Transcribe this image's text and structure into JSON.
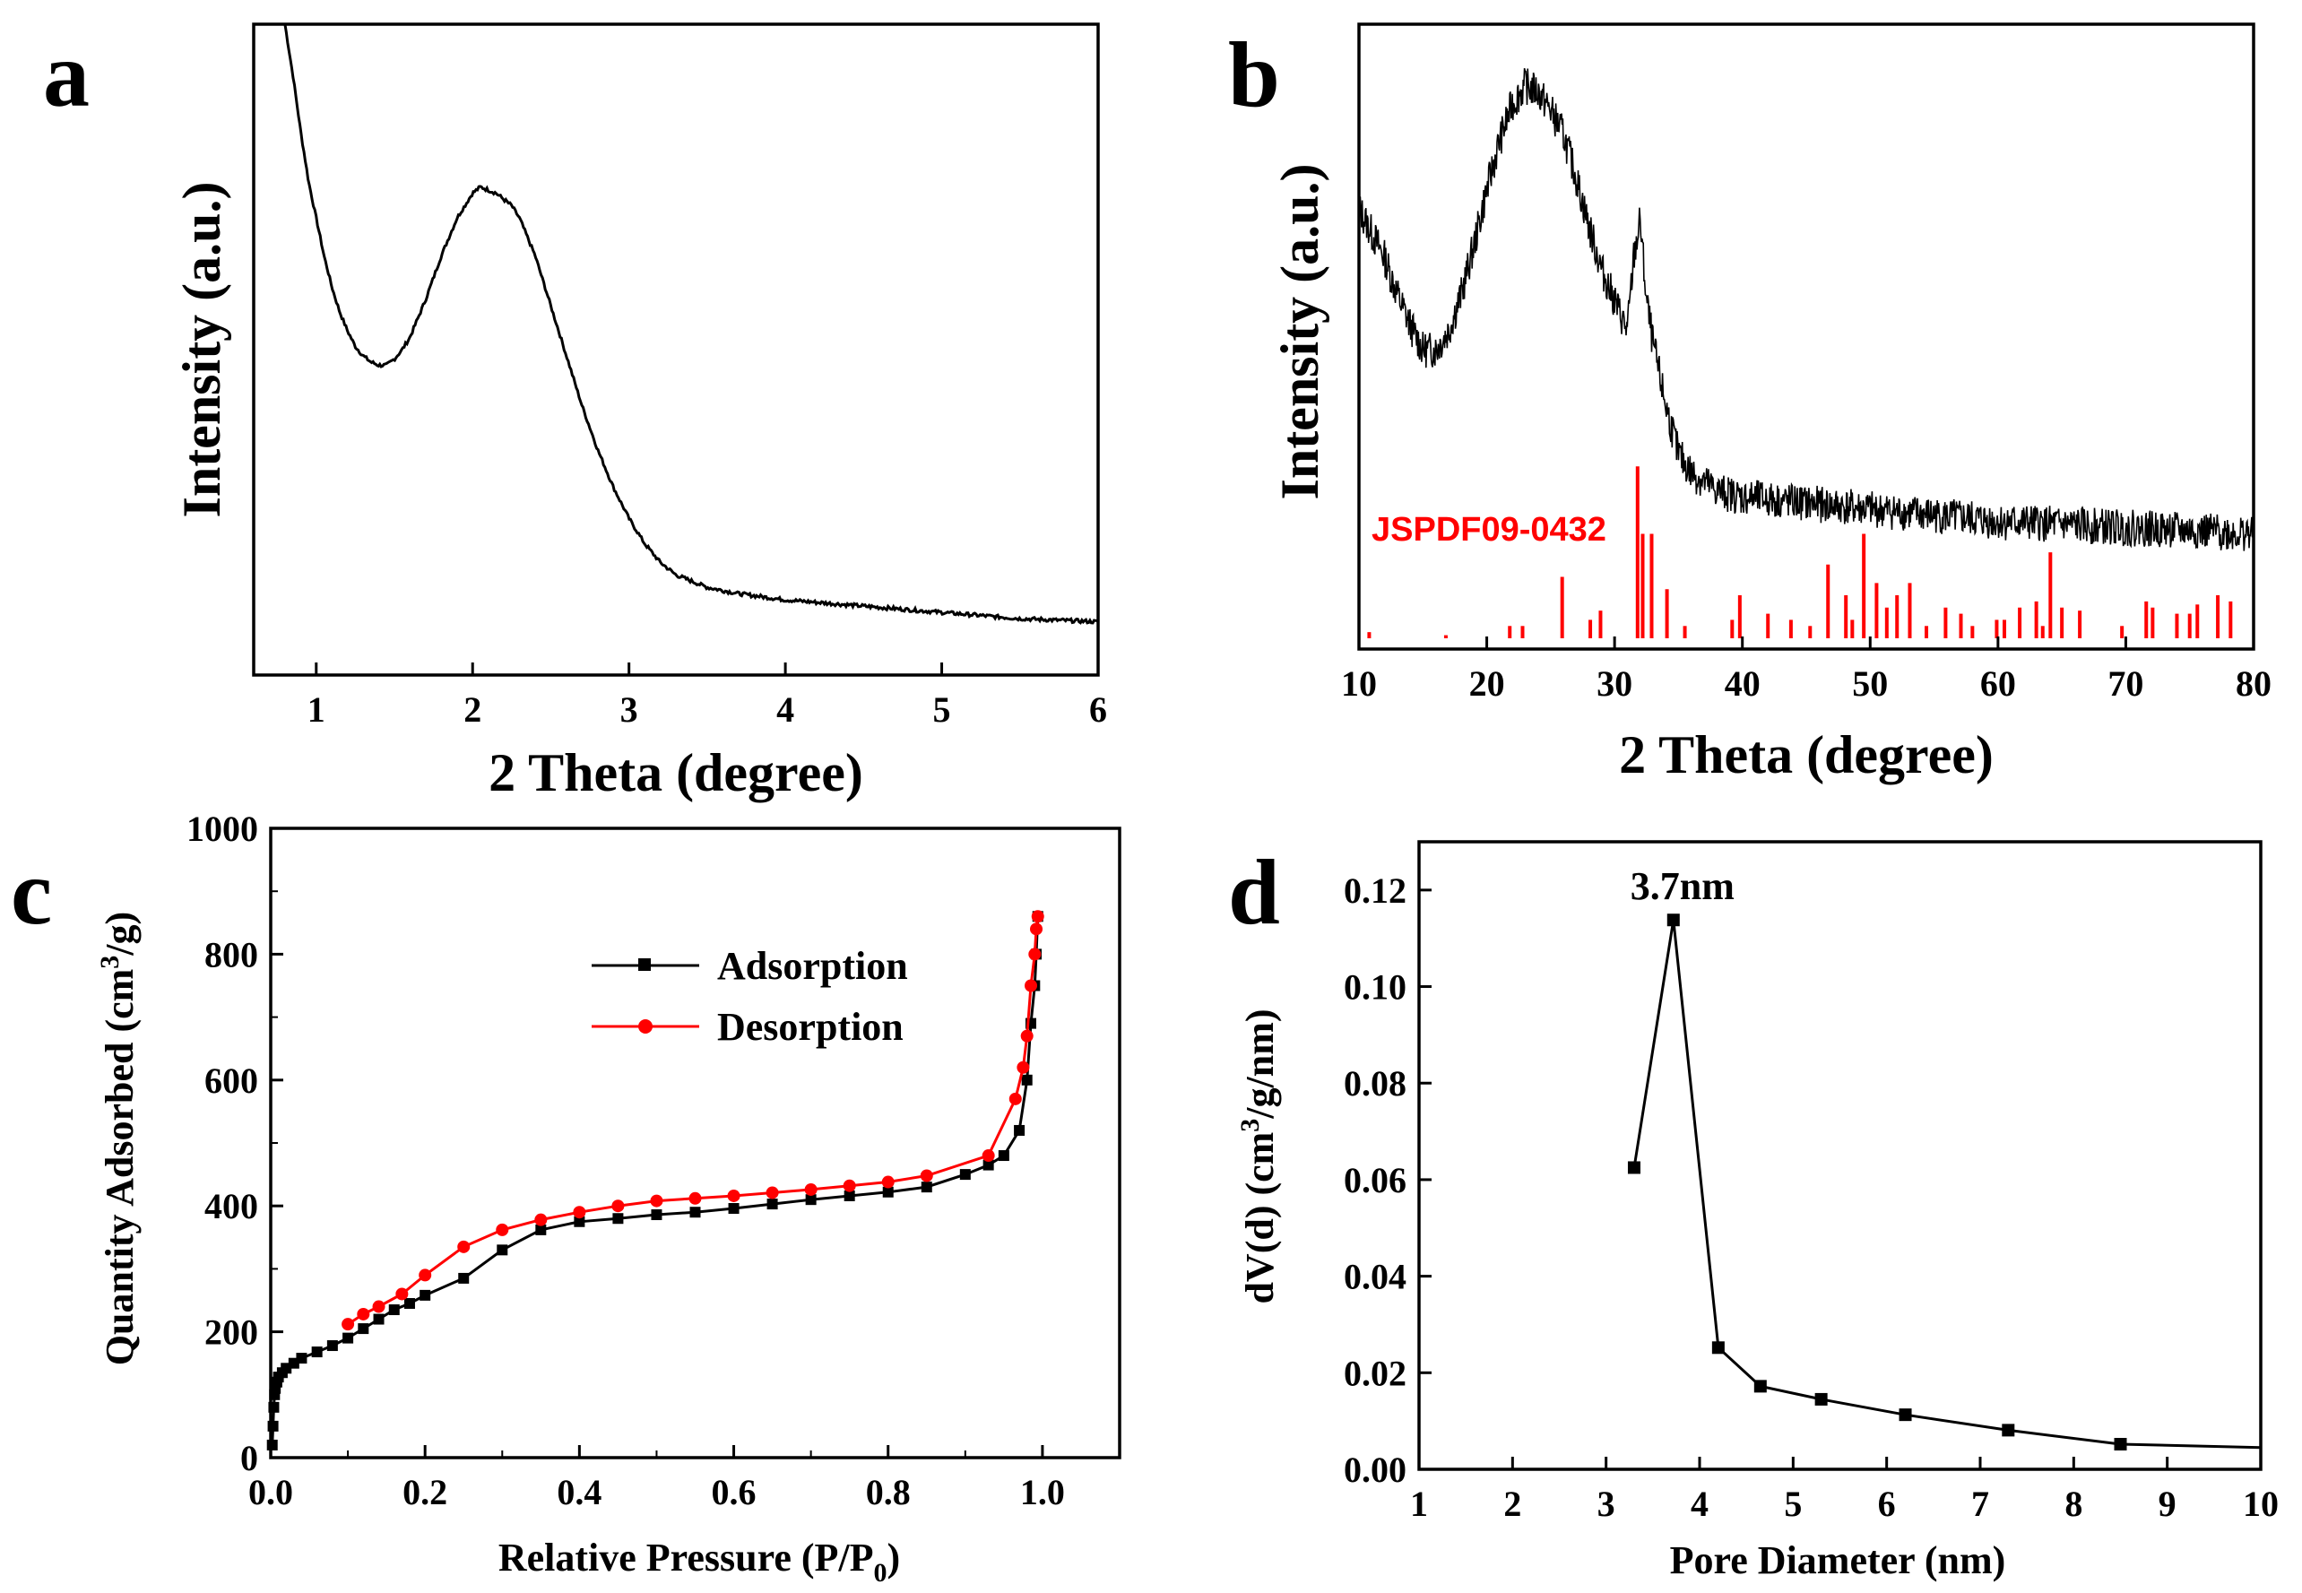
{
  "chart_data": [
    {
      "id": "a",
      "panel_label": "a",
      "type": "line",
      "xlabel": "2 Theta (degree)",
      "ylabel": "Intensity (a.u.)",
      "xlim": [
        0.6,
        6
      ],
      "ylim": [
        0,
        1
      ],
      "xticks": [
        1,
        2,
        3,
        4,
        5,
        6
      ],
      "yticks_visible": false,
      "grid": false,
      "series": [
        {
          "color": "#000000",
          "x": [
            0.8,
            0.85,
            0.9,
            0.95,
            1.0,
            1.05,
            1.1,
            1.15,
            1.2,
            1.25,
            1.3,
            1.35,
            1.4,
            1.45,
            1.5,
            1.55,
            1.6,
            1.7,
            1.8,
            1.9,
            2.0,
            2.05,
            2.1,
            2.15,
            2.2,
            2.25,
            2.3,
            2.4,
            2.5,
            2.6,
            2.7,
            2.8,
            2.9,
            3.0,
            3.1,
            3.2,
            3.3,
            3.4,
            3.5,
            3.7,
            4.0,
            4.5,
            5.0,
            5.5,
            6.0
          ],
          "y": [
            1.0,
            0.92,
            0.83,
            0.75,
            0.69,
            0.63,
            0.58,
            0.54,
            0.51,
            0.485,
            0.47,
            0.46,
            0.455,
            0.455,
            0.465,
            0.48,
            0.5,
            0.56,
            0.63,
            0.69,
            0.73,
            0.74,
            0.735,
            0.73,
            0.72,
            0.71,
            0.69,
            0.63,
            0.55,
            0.47,
            0.39,
            0.32,
            0.26,
            0.21,
            0.17,
            0.14,
            0.12,
            0.11,
            0.1,
            0.09,
            0.08,
            0.07,
            0.06,
            0.05,
            0.045
          ]
        }
      ]
    },
    {
      "id": "b",
      "panel_label": "b",
      "type": "line",
      "xlabel": "2 Theta (degree)",
      "ylabel": "Intensity (a.u.)",
      "xlim": [
        10,
        80
      ],
      "ylim": [
        0,
        1
      ],
      "xticks": [
        10,
        20,
        30,
        40,
        50,
        60,
        70,
        80
      ],
      "yticks_visible": false,
      "grid": false,
      "series": [
        {
          "color": "#000000",
          "noisy": true,
          "x": [
            10,
            11,
            12,
            13,
            14,
            15,
            16,
            17,
            18,
            19,
            20,
            21,
            22,
            23,
            24,
            25,
            26,
            27,
            28,
            29,
            30,
            31,
            31.5,
            32,
            32.5,
            33,
            34,
            35,
            36,
            38,
            40,
            45,
            50,
            55,
            60,
            65,
            70,
            75,
            80
          ],
          "y": [
            0.7,
            0.66,
            0.62,
            0.56,
            0.51,
            0.47,
            0.47,
            0.5,
            0.56,
            0.64,
            0.73,
            0.81,
            0.87,
            0.9,
            0.89,
            0.86,
            0.82,
            0.75,
            0.67,
            0.6,
            0.55,
            0.5,
            0.62,
            0.68,
            0.55,
            0.48,
            0.38,
            0.3,
            0.27,
            0.24,
            0.23,
            0.22,
            0.21,
            0.2,
            0.19,
            0.185,
            0.18,
            0.175,
            0.17
          ]
        }
      ],
      "reference_pattern": {
        "label": "JSPDF09-0432",
        "color": "#ff0000",
        "x": [
          10.8,
          16.8,
          21.8,
          22.8,
          25.9,
          28.1,
          28.9,
          31.8,
          32.2,
          32.9,
          34.1,
          35.5,
          39.2,
          39.8,
          42.0,
          43.8,
          45.3,
          46.7,
          48.1,
          48.6,
          49.5,
          50.5,
          51.3,
          52.1,
          53.1,
          54.4,
          55.9,
          57.1,
          58.0,
          59.9,
          60.5,
          61.7,
          63.0,
          63.5,
          64.1,
          65.0,
          66.4,
          69.7,
          71.6,
          72.1,
          74.0,
          75.0,
          75.6,
          77.2,
          78.2
        ],
        "y": [
          0.01,
          0.005,
          0.02,
          0.02,
          0.1,
          0.03,
          0.045,
          0.28,
          0.17,
          0.17,
          0.08,
          0.02,
          0.03,
          0.07,
          0.04,
          0.03,
          0.02,
          0.12,
          0.07,
          0.03,
          0.17,
          0.09,
          0.05,
          0.07,
          0.09,
          0.02,
          0.05,
          0.04,
          0.02,
          0.03,
          0.03,
          0.05,
          0.06,
          0.02,
          0.14,
          0.05,
          0.045,
          0.02,
          0.06,
          0.05,
          0.04,
          0.04,
          0.055,
          0.07,
          0.06
        ]
      }
    },
    {
      "id": "c",
      "panel_label": "c",
      "type": "line",
      "xlabel": "Relative Pressure (P/P",
      "xlabel_sub": "0",
      "xlabel_end": ")",
      "ylabel": "Quantity Adsorbed (cm",
      "ylabel_sup": "3",
      "ylabel_end": "/g)",
      "xlim": [
        0,
        1.1
      ],
      "ylim": [
        0,
        1000
      ],
      "xticks": [
        0.0,
        0.2,
        0.4,
        0.6,
        0.8,
        1.0
      ],
      "xtick_labels": [
        "0.0",
        "0.2",
        "0.4",
        "0.6",
        "0.8",
        "1.0"
      ],
      "yticks": [
        0,
        200,
        400,
        600,
        800,
        1000
      ],
      "yminor_step": 100,
      "xminor_step": 0.1,
      "grid": false,
      "legend_position": "upper-center",
      "series": [
        {
          "name": "Adsorption",
          "color": "#000000",
          "marker": "square",
          "x": [
            0.002,
            0.003,
            0.004,
            0.005,
            0.006,
            0.008,
            0.01,
            0.015,
            0.02,
            0.03,
            0.04,
            0.06,
            0.08,
            0.1,
            0.12,
            0.14,
            0.16,
            0.18,
            0.2,
            0.25,
            0.3,
            0.35,
            0.4,
            0.45,
            0.5,
            0.55,
            0.6,
            0.65,
            0.7,
            0.75,
            0.8,
            0.85,
            0.9,
            0.93,
            0.95,
            0.97,
            0.98,
            0.985,
            0.99,
            0.992,
            0.994
          ],
          "y": [
            20,
            50,
            80,
            100,
            110,
            120,
            128,
            135,
            142,
            150,
            158,
            168,
            178,
            190,
            205,
            220,
            235,
            245,
            258,
            285,
            330,
            362,
            375,
            380,
            386,
            390,
            396,
            403,
            410,
            416,
            422,
            430,
            450,
            465,
            480,
            520,
            600,
            690,
            750,
            800,
            860
          ]
        },
        {
          "name": "Desorption",
          "color": "#ff0000",
          "marker": "circle",
          "x": [
            0.994,
            0.992,
            0.99,
            0.985,
            0.98,
            0.975,
            0.965,
            0.93,
            0.85,
            0.8,
            0.75,
            0.7,
            0.65,
            0.6,
            0.55,
            0.5,
            0.45,
            0.4,
            0.35,
            0.3,
            0.25,
            0.2,
            0.17,
            0.14,
            0.12,
            0.1
          ],
          "y": [
            860,
            840,
            800,
            750,
            670,
            620,
            570,
            480,
            448,
            438,
            432,
            426,
            421,
            416,
            412,
            408,
            400,
            390,
            378,
            362,
            335,
            290,
            260,
            240,
            228,
            212
          ]
        }
      ]
    },
    {
      "id": "d",
      "panel_label": "d",
      "type": "line",
      "xlabel": "Pore Diameter (nm)",
      "ylabel": "dV(d)  (cm",
      "ylabel_sup": "3",
      "ylabel_end": "/g/nm)",
      "xlim": [
        1,
        10
      ],
      "ylim": [
        0,
        0.13
      ],
      "xticks": [
        1,
        2,
        3,
        4,
        5,
        6,
        7,
        8,
        9,
        10
      ],
      "yticks": [
        0.0,
        0.02,
        0.04,
        0.06,
        0.08,
        0.1,
        0.12
      ],
      "ytick_labels": [
        "0.00",
        "0.02",
        "0.04",
        "0.06",
        "0.08",
        "0.10",
        "0.12"
      ],
      "grid": false,
      "annotation": {
        "text": "3.7nm",
        "x": 3.72,
        "y": 0.114
      },
      "series": [
        {
          "color": "#000000",
          "marker": "square",
          "x": [
            3.3,
            3.72,
            4.2,
            4.65,
            5.3,
            6.2,
            7.3,
            8.5,
            10
          ],
          "y": [
            0.0625,
            0.1138,
            0.0252,
            0.0172,
            0.0145,
            0.0113,
            0.0081,
            0.0052,
            0.0045
          ],
          "marker_mask": [
            true,
            true,
            true,
            true,
            true,
            true,
            true,
            true,
            false
          ]
        }
      ]
    }
  ]
}
